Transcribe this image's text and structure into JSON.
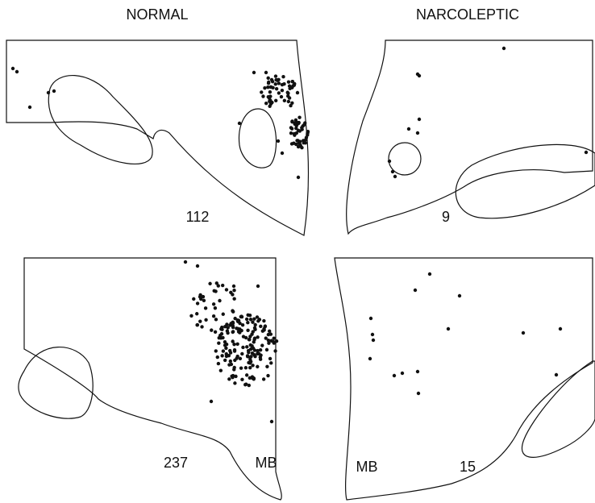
{
  "columns": [
    "NORMAL",
    "NARCOLEPTIC"
  ],
  "panels": [
    {
      "count": 112
    },
    {
      "count": 9
    },
    {
      "count": 237,
      "label": "MB"
    },
    {
      "count": 15,
      "label": "MB"
    }
  ]
}
